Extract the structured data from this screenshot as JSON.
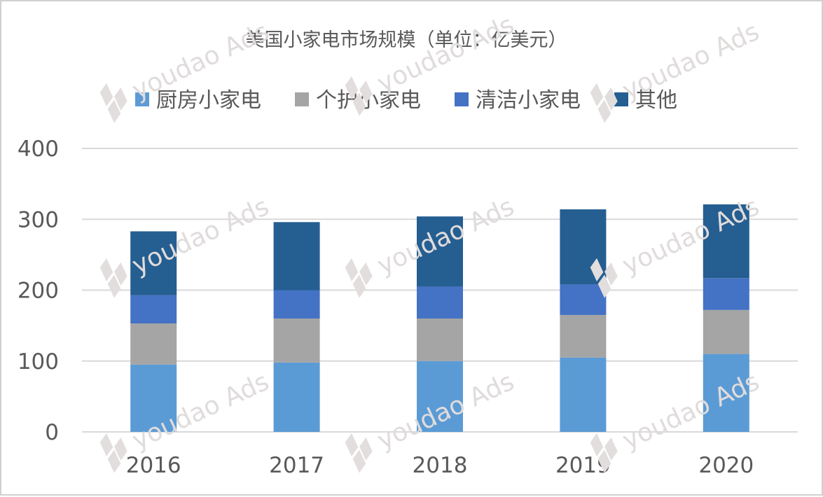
{
  "chart_data": {
    "type": "bar",
    "stacked": true,
    "title": "美国小家电市场规模（单位：亿美元）",
    "categories": [
      "2016",
      "2017",
      "2018",
      "2019",
      "2020"
    ],
    "series": [
      {
        "name": "厨房小家电",
        "color": "#5b9bd5",
        "values": [
          95,
          98,
          100,
          105,
          110
        ]
      },
      {
        "name": "个护小家电",
        "color": "#a5a5a5",
        "values": [
          58,
          62,
          60,
          60,
          62
        ]
      },
      {
        "name": "清洁小家电",
        "color": "#4472c4",
        "values": [
          40,
          40,
          45,
          43,
          45
        ]
      },
      {
        "name": "其他",
        "color": "#255e91",
        "values": [
          90,
          96,
          99,
          106,
          104
        ]
      }
    ],
    "ylim": [
      0,
      400
    ],
    "yticks": [
      0,
      100,
      200,
      300,
      400
    ],
    "xlabel": "",
    "ylabel": "",
    "grid": true,
    "legend_position": "top"
  },
  "watermark": {
    "text": "youdao Ads",
    "icon": "youdao-logo-icon"
  }
}
